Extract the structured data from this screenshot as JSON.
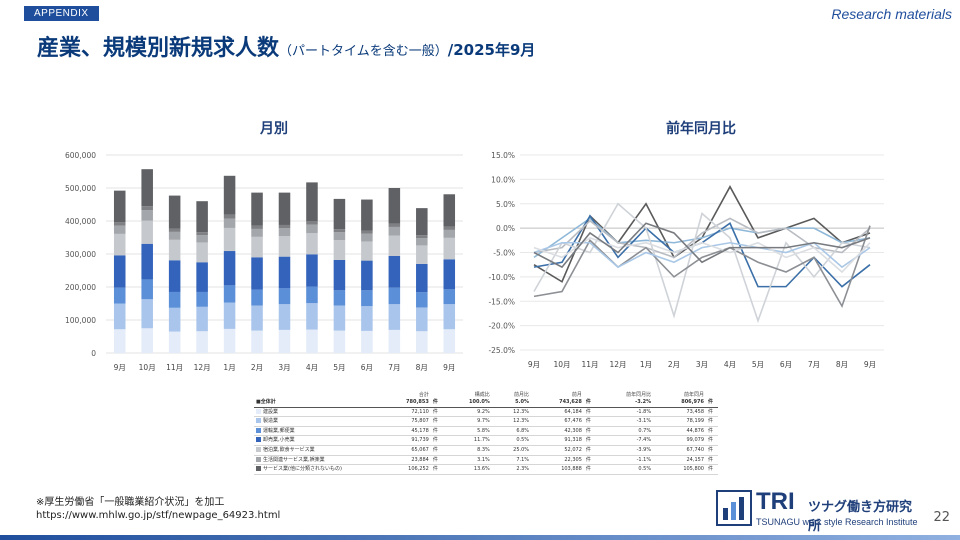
{
  "header": {
    "tag": "APPENDIX",
    "research": "Research materials",
    "title_main": "産業、規模別新規求人数",
    "title_sub": "（パートタイムを含む一般）",
    "title_date": "/2025年9月"
  },
  "chart_data": [
    {
      "type": "bar",
      "title": "月別",
      "stacked": true,
      "categories": [
        "9月",
        "10月",
        "11月",
        "12月",
        "1月",
        "2月",
        "3月",
        "4月",
        "5月",
        "6月",
        "7月",
        "8月",
        "9月"
      ],
      "ylim": [
        0,
        600000
      ],
      "yticks": [
        "0",
        "100,000",
        "200,000",
        "300,000",
        "400,000",
        "500,000",
        "600,000"
      ],
      "grid": true,
      "colors": [
        "#e3ecf8",
        "#aac5ec",
        "#5b8fd8",
        "#3363bb",
        "#c5c8cd",
        "#a3a6aa",
        "#7e8084",
        "#5f6164"
      ],
      "series": [
        {
          "values": [
            72000,
            75000,
            65000,
            66000,
            73000,
            68000,
            70000,
            71000,
            68000,
            67000,
            70000,
            66000,
            72000
          ]
        },
        {
          "values": [
            78000,
            88000,
            72000,
            74000,
            80000,
            76000,
            78000,
            80000,
            76000,
            75000,
            78000,
            72000,
            76000
          ]
        },
        {
          "values": [
            48000,
            60000,
            48000,
            45000,
            52000,
            48000,
            48000,
            50000,
            46000,
            48000,
            50000,
            46000,
            45000
          ]
        },
        {
          "values": [
            98000,
            108000,
            96000,
            90000,
            104000,
            98000,
            96000,
            98000,
            92000,
            90000,
            96000,
            86000,
            91000
          ]
        },
        {
          "values": [
            65000,
            70000,
            62000,
            60000,
            70000,
            62000,
            62000,
            64000,
            60000,
            58000,
            62000,
            56000,
            65000
          ]
        },
        {
          "values": [
            25000,
            32000,
            24000,
            22000,
            28000,
            24000,
            24000,
            26000,
            24000,
            24000,
            26000,
            22000,
            24000
          ]
        },
        {
          "values": [
            10000,
            12000,
            10000,
            9000,
            12000,
            10000,
            10000,
            10000,
            9000,
            9000,
            10000,
            9000,
            10000
          ]
        },
        {
          "values": [
            96000,
            112000,
            100000,
            94000,
            118000,
            100000,
            98000,
            118000,
            92000,
            94000,
            108000,
            82000,
            98000
          ]
        }
      ]
    },
    {
      "type": "line",
      "title": "前年同月比",
      "categories": [
        "9月",
        "10月",
        "11月",
        "12月",
        "1月",
        "2月",
        "3月",
        "4月",
        "5月",
        "6月",
        "7月",
        "8月",
        "9月"
      ],
      "ylim": [
        -25,
        15
      ],
      "yticks": [
        "-25.0%",
        "-20.0%",
        "-15.0%",
        "-10.0%",
        "-5.0%",
        "0.0%",
        "5.0%",
        "10.0%",
        "15.0%"
      ],
      "grid": true,
      "series": [
        {
          "color": "#5a5a5a",
          "values": [
            -7.5,
            -11,
            2.5,
            -3,
            5,
            -6,
            -2,
            8.5,
            -2,
            0,
            2,
            -3,
            -1
          ]
        },
        {
          "color": "#8fb8d8",
          "values": [
            -6,
            -2,
            2,
            -3,
            -2.5,
            -3,
            -2,
            0,
            -1,
            0,
            0,
            -3,
            -2
          ]
        },
        {
          "color": "#3b6fa8",
          "values": [
            -8,
            -7,
            2.5,
            -6,
            0,
            -5,
            -3,
            1,
            -12,
            -12,
            -6,
            -12,
            -7.5
          ]
        },
        {
          "color": "#b8bcc2",
          "values": [
            -5,
            -4,
            1.5,
            -3,
            -4,
            -6,
            -1,
            2,
            -1,
            0,
            -4,
            -5,
            0
          ]
        },
        {
          "color": "#cfd3d8",
          "values": [
            -13,
            -3,
            -5,
            5,
            0,
            -18,
            3,
            -2,
            -19,
            -3,
            -10,
            -3,
            -4
          ]
        },
        {
          "color": "#8c8f94",
          "values": [
            -14,
            -13,
            -2.5,
            -8,
            -4,
            -10,
            -6,
            -4,
            -7,
            -9,
            -6,
            -16,
            0.5
          ]
        },
        {
          "color": "#a9c7e6",
          "values": [
            -5,
            -3,
            -3,
            -8,
            -5,
            -7,
            -4,
            -3,
            -4,
            -5,
            -3,
            -8,
            -4
          ]
        },
        {
          "color": "#dadde1",
          "values": [
            -4,
            -6,
            -2,
            -4,
            -3,
            -5,
            -3,
            -5,
            -3,
            -6,
            -4,
            -9,
            -3
          ]
        },
        {
          "color": "#777a7e",
          "values": [
            -5,
            -8,
            -1,
            -5,
            1,
            -1,
            -7,
            -4,
            -4,
            -4,
            -3,
            -4,
            -2
          ]
        }
      ]
    }
  ],
  "table": {
    "headers": [
      "合計",
      "構成比",
      "前月比",
      "前月",
      "前年同月比",
      "前年同月"
    ],
    "unit": "件",
    "rows": [
      {
        "label": "■全体計",
        "total": "780,853",
        "share": "100.0%",
        "mom": "5.0%",
        "prev": "743,628",
        "yoy": "-3.2%",
        "prev_year": "806,976",
        "color": "#333333",
        "is_total": true
      },
      {
        "label": "建設業",
        "total": "72,110",
        "share": "9.2%",
        "mom": "12.3%",
        "prev": "64,184",
        "yoy": "-1.8%",
        "prev_year": "73,458",
        "color": "#e3ecf8"
      },
      {
        "label": "製造業",
        "total": "75,807",
        "share": "9.7%",
        "mom": "12.3%",
        "prev": "67,476",
        "yoy": "-3.1%",
        "prev_year": "78,199",
        "color": "#aac5ec"
      },
      {
        "label": "運輸業,郵便業",
        "total": "45,178",
        "share": "5.8%",
        "mom": "6.8%",
        "prev": "42,308",
        "yoy": "0.7%",
        "prev_year": "44,876",
        "color": "#5b8fd8"
      },
      {
        "label": "卸売業,小売業",
        "total": "91,739",
        "share": "11.7%",
        "mom": "0.5%",
        "prev": "91,318",
        "yoy": "-7.4%",
        "prev_year": "99,079",
        "color": "#3363bb"
      },
      {
        "label": "宿泊業,飲食サービス業",
        "total": "65,067",
        "share": "8.3%",
        "mom": "25.0%",
        "prev": "52,072",
        "yoy": "-3.9%",
        "prev_year": "67,740",
        "color": "#c5c8cd"
      },
      {
        "label": "生活関連サービス業,娯楽業",
        "total": "23,884",
        "share": "3.1%",
        "mom": "7.1%",
        "prev": "22,305",
        "yoy": "-1.1%",
        "prev_year": "24,157",
        "color": "#a3a6aa"
      },
      {
        "label": "サービス業(他に分類されないもの)",
        "total": "106,252",
        "share": "13.6%",
        "mom": "2.3%",
        "prev": "103,888",
        "yoy": "0.5%",
        "prev_year": "105,800",
        "color": "#5f6164"
      }
    ]
  },
  "footer": {
    "note1": "※厚生労働省「一般職業紹介状況」を加工",
    "note2": "https://www.mhlw.go.jp/stf/newpage_64923.html",
    "logo_tri": "TRI",
    "logo_jp": "ツナグ働き方研究所",
    "logo_en": "TSUNAGU work style Research Institute",
    "page": "22"
  }
}
